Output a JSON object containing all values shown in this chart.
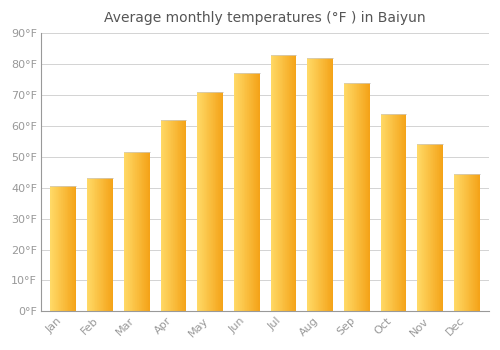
{
  "title": "Average monthly temperatures (°F ) in Baiyun",
  "months": [
    "Jan",
    "Feb",
    "Mar",
    "Apr",
    "May",
    "Jun",
    "Jul",
    "Aug",
    "Sep",
    "Oct",
    "Nov",
    "Dec"
  ],
  "values": [
    40.5,
    43.0,
    51.5,
    62.0,
    71.0,
    77.0,
    83.0,
    82.0,
    74.0,
    64.0,
    54.0,
    44.5
  ],
  "bar_color_left": "#FFD966",
  "bar_color_right": "#F4A318",
  "ylim": [
    0,
    90
  ],
  "yticks": [
    0,
    10,
    20,
    30,
    40,
    50,
    60,
    70,
    80,
    90
  ],
  "ytick_labels": [
    "0°F",
    "10°F",
    "20°F",
    "30°F",
    "40°F",
    "50°F",
    "60°F",
    "70°F",
    "80°F",
    "90°F"
  ],
  "grid_color": "#cccccc",
  "background_color": "#ffffff",
  "title_fontsize": 10,
  "tick_fontsize": 8,
  "tick_color": "#999999",
  "bar_width": 0.7,
  "bar_gap_color": "#ffffff"
}
